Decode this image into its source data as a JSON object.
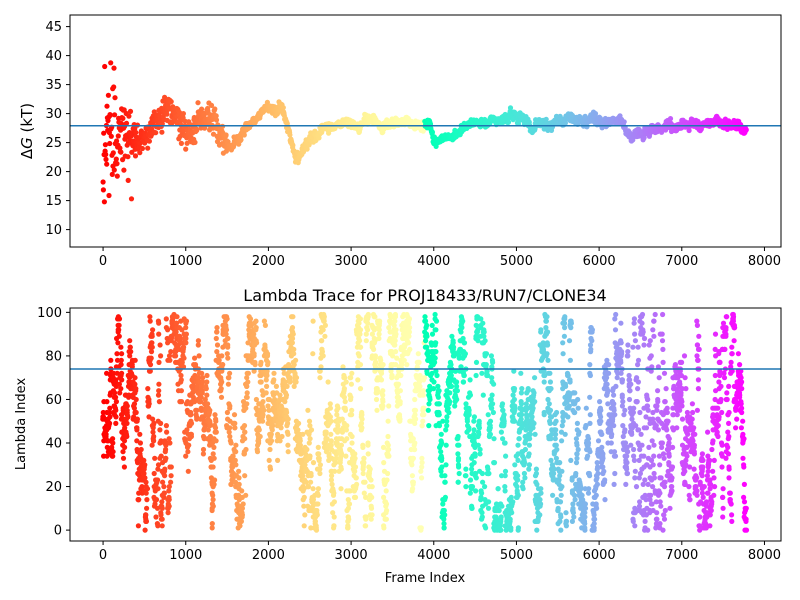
{
  "chart_data": [
    {
      "type": "scatter",
      "title": "",
      "xlabel": "",
      "ylabel_prefix": "Δ",
      "ylabel_italic": "G",
      "ylabel_suffix": " (kT)",
      "xlim": [
        -400,
        8200
      ],
      "ylim": [
        7,
        47
      ],
      "xticks": [
        0,
        1000,
        2000,
        3000,
        4000,
        5000,
        6000,
        7000,
        8000
      ],
      "yticks": [
        10,
        15,
        20,
        25,
        30,
        35,
        40,
        45
      ],
      "hline": 27.9,
      "hline_color": "#1f77b4",
      "colormap": "rainbow (red at frame 0 to violet at last frame)",
      "x_range": [
        0,
        7780
      ],
      "trace_keypoints": [
        [
          0,
          24
        ],
        [
          50,
          28
        ],
        [
          150,
          27
        ],
        [
          300,
          26
        ],
        [
          450,
          25
        ],
        [
          600,
          28
        ],
        [
          750,
          31
        ],
        [
          900,
          29
        ],
        [
          1000,
          26
        ],
        [
          1150,
          29
        ],
        [
          1300,
          30
        ],
        [
          1450,
          25
        ],
        [
          1550,
          24
        ],
        [
          1700,
          27
        ],
        [
          1850,
          29
        ],
        [
          2000,
          31
        ],
        [
          2150,
          31
        ],
        [
          2250,
          27
        ],
        [
          2330,
          22
        ],
        [
          2500,
          26
        ],
        [
          2700,
          27
        ],
        [
          2850,
          28
        ],
        [
          3000,
          29
        ],
        [
          3100,
          27
        ],
        [
          3200,
          29
        ],
        [
          3400,
          28
        ],
        [
          3600,
          29
        ],
        [
          3800,
          28
        ],
        [
          3950,
          28
        ],
        [
          4020,
          25
        ],
        [
          4200,
          26
        ],
        [
          4400,
          28
        ],
        [
          4600,
          29
        ],
        [
          4800,
          29
        ],
        [
          5000,
          30
        ],
        [
          5200,
          28
        ],
        [
          5400,
          28
        ],
        [
          5600,
          29
        ],
        [
          5800,
          29
        ],
        [
          6000,
          29
        ],
        [
          6300,
          28
        ],
        [
          6400,
          26
        ],
        [
          6600,
          27
        ],
        [
          6800,
          28
        ],
        [
          7000,
          28
        ],
        [
          7400,
          28.5
        ],
        [
          7600,
          28
        ],
        [
          7780,
          27
        ]
      ]
    },
    {
      "type": "scatter",
      "title": "Lambda Trace for PROJ18433/RUN7/CLONE34",
      "xlabel": "Frame Index",
      "ylabel": "Lambda Index",
      "xlim": [
        -400,
        8200
      ],
      "ylim": [
        -5,
        102
      ],
      "xticks": [
        0,
        1000,
        2000,
        3000,
        4000,
        5000,
        6000,
        7000,
        8000
      ],
      "yticks": [
        0,
        20,
        40,
        60,
        80,
        100
      ],
      "hline": 74,
      "hline_color": "#1f77b4",
      "colormap": "rainbow (red at frame 0 to violet at last frame)",
      "x_range": [
        0,
        7780
      ],
      "lambda_range": [
        0,
        99
      ]
    }
  ]
}
